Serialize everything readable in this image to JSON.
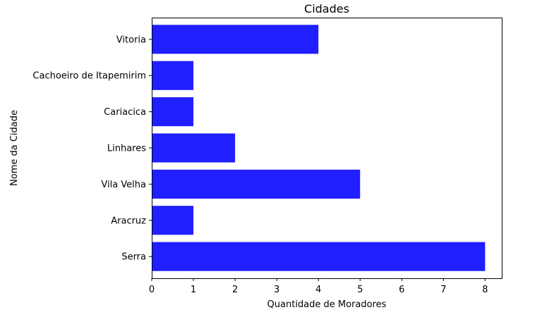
{
  "chart_data": {
    "type": "bar",
    "orientation": "horizontal",
    "title": "Cidades",
    "xlabel": "Quantidade de Moradores",
    "ylabel": "Nome da Cidade",
    "categories": [
      "Serra",
      "Aracruz",
      "Vila Velha",
      "Linhares",
      "Cariacica",
      "Cachoeiro de Itapemirim",
      "Vitoria"
    ],
    "values": [
      8,
      1,
      5,
      2,
      1,
      1,
      4
    ],
    "xlim": [
      0,
      8.4
    ],
    "xticks": [
      "0",
      "1",
      "2",
      "3",
      "4",
      "5",
      "6",
      "7",
      "8"
    ],
    "bar_color": "#1f1fff",
    "grid": false
  }
}
